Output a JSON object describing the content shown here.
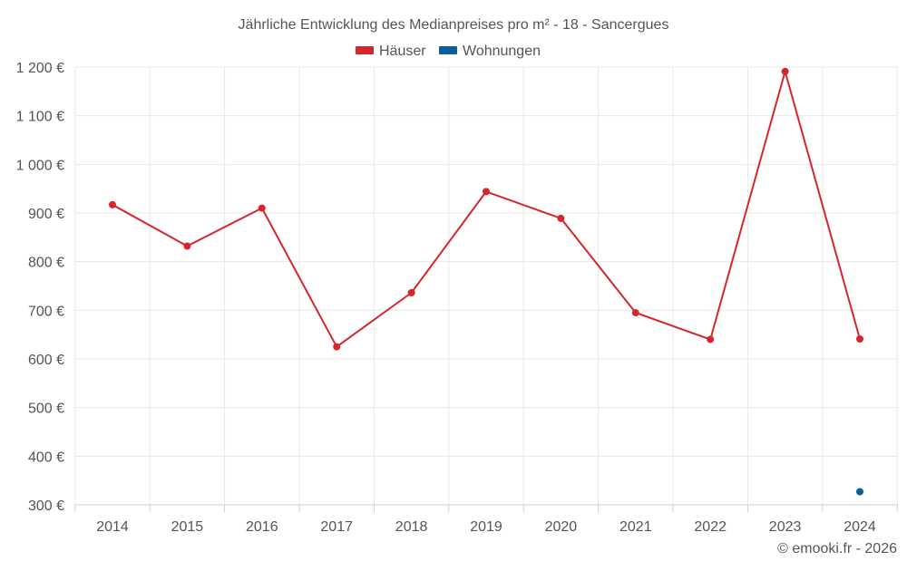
{
  "chart_data": {
    "type": "line",
    "title": "Jährliche Entwicklung des Medianpreises pro m² - 18 - Sancergues",
    "categories": [
      "2014",
      "2015",
      "2016",
      "2017",
      "2018",
      "2019",
      "2020",
      "2021",
      "2022",
      "2023",
      "2024"
    ],
    "series": [
      {
        "name": "Häuser",
        "color": "#d7262b",
        "values": [
          917,
          832,
          910,
          625,
          736,
          944,
          889,
          695,
          640,
          1191,
          641
        ]
      },
      {
        "name": "Wohnungen",
        "color": "#0a5e9c",
        "values": [
          null,
          null,
          null,
          null,
          null,
          null,
          null,
          null,
          null,
          null,
          327
        ]
      }
    ],
    "ylim": [
      300,
      1200
    ],
    "yticks": [
      300,
      400,
      500,
      600,
      700,
      800,
      900,
      1000,
      1100,
      1200
    ],
    "ytick_labels": [
      "300 €",
      "400 €",
      "500 €",
      "600 €",
      "700 €",
      "800 €",
      "900 €",
      "1 000 €",
      "1 100 €",
      "1 200 €"
    ],
    "xlabel": "",
    "ylabel": "",
    "grid": true,
    "legend_position": "top-center"
  },
  "credit": "© emooki.fr - 2026"
}
